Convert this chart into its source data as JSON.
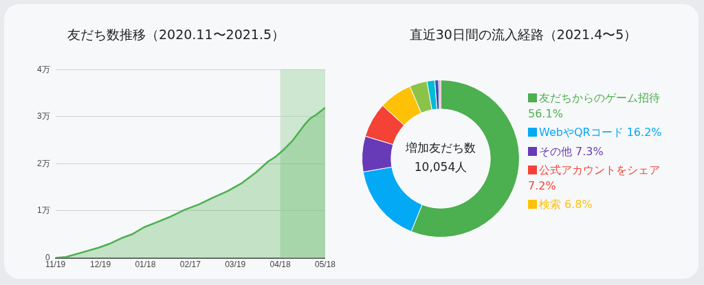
{
  "chart_data": [
    {
      "type": "area",
      "title": "友だち数推移（2020.11〜2021.5）",
      "x": [
        "2020-11-19",
        "2020-11-26",
        "2020-12-07",
        "2020-12-18",
        "2020-12-25",
        "2021-01-02",
        "2021-01-09",
        "2021-01-17",
        "2021-01-25",
        "2021-02-04",
        "2021-02-13",
        "2021-02-23",
        "2021-03-04",
        "2021-03-14",
        "2021-03-23",
        "2021-04-02",
        "2021-04-10",
        "2021-04-15",
        "2021-04-21",
        "2021-04-26",
        "2021-05-04",
        "2021-05-08",
        "2021-05-12",
        "2021-05-16",
        "2021-05-18"
      ],
      "series": [
        {
          "color": "#4caf50",
          "values": [
            0,
            0.02,
            0.12,
            0.22,
            0.3,
            0.42,
            0.5,
            0.65,
            0.75,
            0.88,
            1.02,
            1.14,
            1.28,
            1.42,
            1.58,
            1.82,
            2.05,
            2.15,
            2.32,
            2.48,
            2.82,
            2.96,
            3.04,
            3.14,
            3.19
          ]
        }
      ],
      "xlim": [
        "2020-11-19",
        "2021-05-18"
      ],
      "xticks": [
        {
          "value": "2020-11-19",
          "label": "11/19"
        },
        {
          "value": "2020-12-19",
          "label": "12/19"
        },
        {
          "value": "2021-01-18",
          "label": "01/18"
        },
        {
          "value": "2021-02-17",
          "label": "02/17"
        },
        {
          "value": "2021-03-19",
          "label": "03/19"
        },
        {
          "value": "2021-04-18",
          "label": "04/18"
        },
        {
          "value": "2021-05-18",
          "label": "05/18"
        }
      ],
      "ylim": [
        0,
        4
      ],
      "yticks": [
        0,
        {
          "value": 1,
          "label": "1万"
        },
        {
          "value": 2,
          "label": "2万"
        },
        {
          "value": 3,
          "label": "3万"
        },
        {
          "value": 4,
          "label": "4万"
        }
      ],
      "grid": "y",
      "marker": "none",
      "bands": [
        {
          "axis": "x",
          "from": "2021-04-18",
          "to": "2021-05-18",
          "color": "#a5d6a7"
        }
      ]
    },
    {
      "type": "donut",
      "title": "直近30日間の流入経路（2021.4〜5）",
      "categories": [
        "友だちからのゲーム招待",
        "WebやQRコード",
        "その他",
        "公式アカウントをシェア",
        "検索",
        null,
        null,
        null,
        null
      ],
      "values": [
        56.1,
        16.2,
        7.3,
        7.2,
        6.8,
        3.6,
        1.6,
        0.8,
        0.4
      ],
      "value_labels": [
        "56.1%",
        "16.2%",
        "7.3%",
        "7.2%",
        "6.8%",
        null,
        null,
        null,
        null
      ],
      "colors": [
        "#4caf50",
        "#03a9f4",
        "#673ab7",
        "#f44336",
        "#ffc107",
        "#8bc34a",
        "#00bcd4",
        "#3f51b5",
        "#f48fb1"
      ],
      "legend": "right",
      "annotations": [
        "増加友だち数",
        "10,054人"
      ]
    }
  ]
}
